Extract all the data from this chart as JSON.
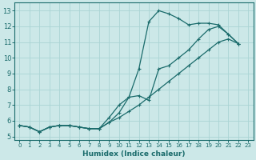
{
  "xlabel": "Humidex (Indice chaleur)",
  "xlim": [
    -0.5,
    23.5
  ],
  "ylim": [
    4.8,
    13.5
  ],
  "bg_color": "#cce8e8",
  "grid_color": "#aad4d4",
  "line_color": "#1a6b6b",
  "xticks": [
    0,
    1,
    2,
    3,
    4,
    5,
    6,
    7,
    8,
    9,
    10,
    11,
    12,
    13,
    14,
    15,
    16,
    17,
    18,
    19,
    20,
    21,
    22,
    23
  ],
  "yticks": [
    5,
    6,
    7,
    8,
    9,
    10,
    11,
    12,
    13
  ],
  "line1_x": [
    0,
    1,
    2,
    3,
    4,
    5,
    6,
    7,
    8,
    9,
    10,
    11,
    12,
    13,
    14,
    15,
    16,
    17,
    18,
    19,
    20,
    21,
    22
  ],
  "line1_y": [
    5.7,
    5.6,
    5.3,
    5.6,
    5.7,
    5.7,
    5.6,
    5.5,
    5.5,
    5.9,
    6.5,
    7.5,
    9.3,
    12.3,
    13.0,
    12.8,
    12.5,
    12.1,
    12.2,
    12.2,
    12.1,
    11.5,
    10.9
  ],
  "line2_x": [
    0,
    1,
    2,
    3,
    4,
    5,
    6,
    7,
    8,
    9,
    10,
    11,
    12,
    13,
    14,
    15,
    16,
    17,
    18,
    19,
    20,
    21,
    22
  ],
  "line2_y": [
    5.7,
    5.6,
    5.3,
    5.6,
    5.7,
    5.7,
    5.6,
    5.5,
    5.5,
    6.2,
    7.0,
    7.5,
    7.6,
    7.3,
    9.3,
    9.5,
    10.0,
    10.5,
    11.2,
    11.8,
    12.0,
    11.5,
    10.9
  ],
  "line3_x": [
    0,
    1,
    2,
    3,
    4,
    5,
    6,
    7,
    8,
    9,
    10,
    11,
    12,
    13,
    14,
    15,
    16,
    17,
    18,
    19,
    20,
    21,
    22
  ],
  "line3_y": [
    5.7,
    5.6,
    5.3,
    5.6,
    5.7,
    5.7,
    5.6,
    5.5,
    5.5,
    5.9,
    6.2,
    6.6,
    7.0,
    7.5,
    8.0,
    8.5,
    9.0,
    9.5,
    10.0,
    10.5,
    11.0,
    11.2,
    10.9
  ]
}
